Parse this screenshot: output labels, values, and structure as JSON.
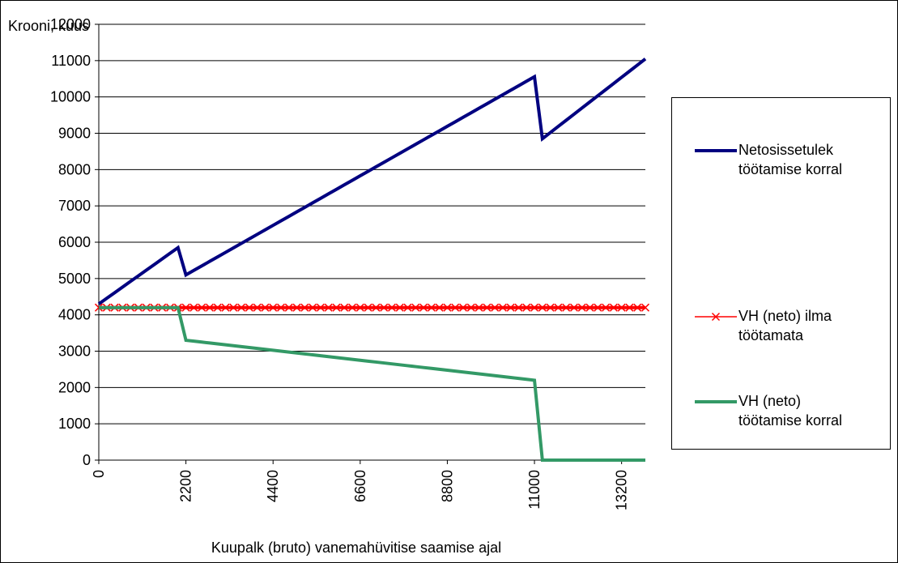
{
  "chart_data": {
    "type": "line",
    "y_label": "Krooni, kuus",
    "x_label": "Kuupalk (bruto) vanemahüvitise saamise ajal",
    "x": [
      0,
      200,
      400,
      600,
      800,
      1000,
      1200,
      1400,
      1600,
      1800,
      2000,
      2200,
      2400,
      2600,
      2800,
      3000,
      3200,
      3400,
      3600,
      3800,
      4000,
      4200,
      4400,
      4600,
      4800,
      5000,
      5200,
      5400,
      5600,
      5800,
      6000,
      6200,
      6400,
      6600,
      6800,
      7000,
      7200,
      7400,
      7600,
      7800,
      8000,
      8200,
      8400,
      8600,
      8800,
      9000,
      9200,
      9400,
      9600,
      9800,
      10000,
      10200,
      10400,
      10600,
      10800,
      11000,
      11200,
      11400,
      11600,
      11800,
      12000,
      12200,
      12400,
      12600,
      12800,
      13000,
      13200,
      13400,
      13600,
      13800
    ],
    "series": [
      {
        "name": "Netosissetulek\ntöötamise korral",
        "color": "#000080",
        "marker": false,
        "values": [
          4300,
          4455,
          4610,
          4765,
          4920,
          5075,
          5230,
          5385,
          5540,
          5695,
          5850,
          5100,
          5224,
          5348,
          5472,
          5596,
          5720,
          5844,
          5968,
          6092,
          6216,
          6340,
          6464,
          6588,
          6712,
          6836,
          6960,
          7084,
          7208,
          7332,
          7456,
          7580,
          7704,
          7828,
          7952,
          8076,
          8200,
          8324,
          8448,
          8572,
          8696,
          8820,
          8944,
          9068,
          9192,
          9316,
          9440,
          9564,
          9688,
          9812,
          9936,
          10060,
          10184,
          10308,
          10432,
          10556,
          8850,
          9019,
          9188,
          9357,
          9526,
          9695,
          9864,
          10033,
          10202,
          10371,
          10540,
          10709,
          10878,
          11047
        ]
      },
      {
        "name": "VH (neto) ilma\ntöötamata",
        "color": "#ff0000",
        "marker": true,
        "values": [
          4200,
          4200,
          4200,
          4200,
          4200,
          4200,
          4200,
          4200,
          4200,
          4200,
          4200,
          4200,
          4200,
          4200,
          4200,
          4200,
          4200,
          4200,
          4200,
          4200,
          4200,
          4200,
          4200,
          4200,
          4200,
          4200,
          4200,
          4200,
          4200,
          4200,
          4200,
          4200,
          4200,
          4200,
          4200,
          4200,
          4200,
          4200,
          4200,
          4200,
          4200,
          4200,
          4200,
          4200,
          4200,
          4200,
          4200,
          4200,
          4200,
          4200,
          4200,
          4200,
          4200,
          4200,
          4200,
          4200,
          4200,
          4200,
          4200,
          4200,
          4200,
          4200,
          4200,
          4200,
          4200,
          4200,
          4200,
          4200,
          4200,
          4200
        ]
      },
      {
        "name": "VH (neto)\ntöötamise korral",
        "color": "#339966",
        "marker": false,
        "values": [
          4200,
          4200,
          4200,
          4200,
          4200,
          4200,
          4200,
          4200,
          4200,
          4200,
          4200,
          3300,
          3275,
          3250,
          3225,
          3200,
          3175,
          3150,
          3125,
          3100,
          3075,
          3050,
          3025,
          3000,
          2975,
          2950,
          2925,
          2900,
          2875,
          2850,
          2825,
          2800,
          2775,
          2750,
          2725,
          2700,
          2675,
          2650,
          2625,
          2600,
          2575,
          2550,
          2525,
          2500,
          2475,
          2450,
          2425,
          2400,
          2375,
          2350,
          2325,
          2300,
          2275,
          2250,
          2225,
          2200,
          0,
          0,
          0,
          0,
          0,
          0,
          0,
          0,
          0,
          0,
          0,
          0,
          0,
          0
        ]
      }
    ],
    "xlim": [
      0,
      13800
    ],
    "xticks": [
      0,
      2200,
      4400,
      6600,
      8800,
      11000,
      13200
    ],
    "ylim": [
      0,
      12000
    ],
    "yticks": [
      0,
      1000,
      2000,
      3000,
      4000,
      5000,
      6000,
      7000,
      8000,
      9000,
      10000,
      11000,
      12000
    ],
    "grid": true,
    "legend": "right"
  }
}
